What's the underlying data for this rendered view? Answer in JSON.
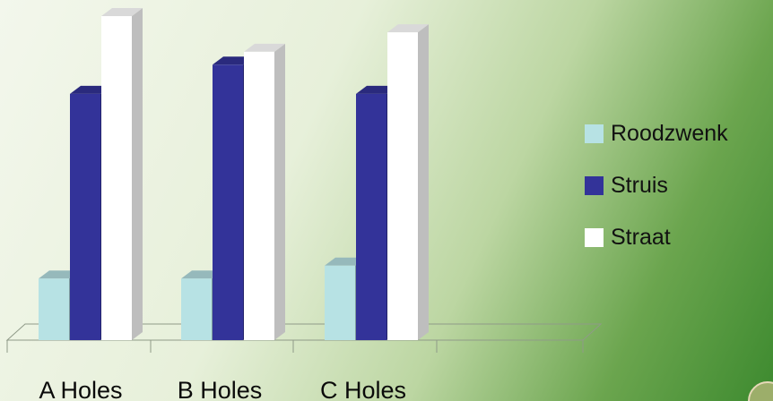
{
  "chart_data": {
    "type": "bar",
    "style": "3d-clustered-column",
    "categories": [
      "A Holes",
      "B Holes",
      "C Holes"
    ],
    "series": [
      {
        "name": "Roodzwenk",
        "color": "#b7e2e4",
        "values": [
          19,
          19,
          23
        ]
      },
      {
        "name": "Struis",
        "color": "#333399",
        "values": [
          76,
          85,
          76
        ]
      },
      {
        "name": "Straat",
        "color": "#ffffff",
        "values": [
          100,
          89,
          95
        ]
      }
    ],
    "title": "",
    "xlabel": "",
    "ylabel": "",
    "ylim": [
      0,
      100
    ],
    "grid": false,
    "legend_position": "right"
  }
}
